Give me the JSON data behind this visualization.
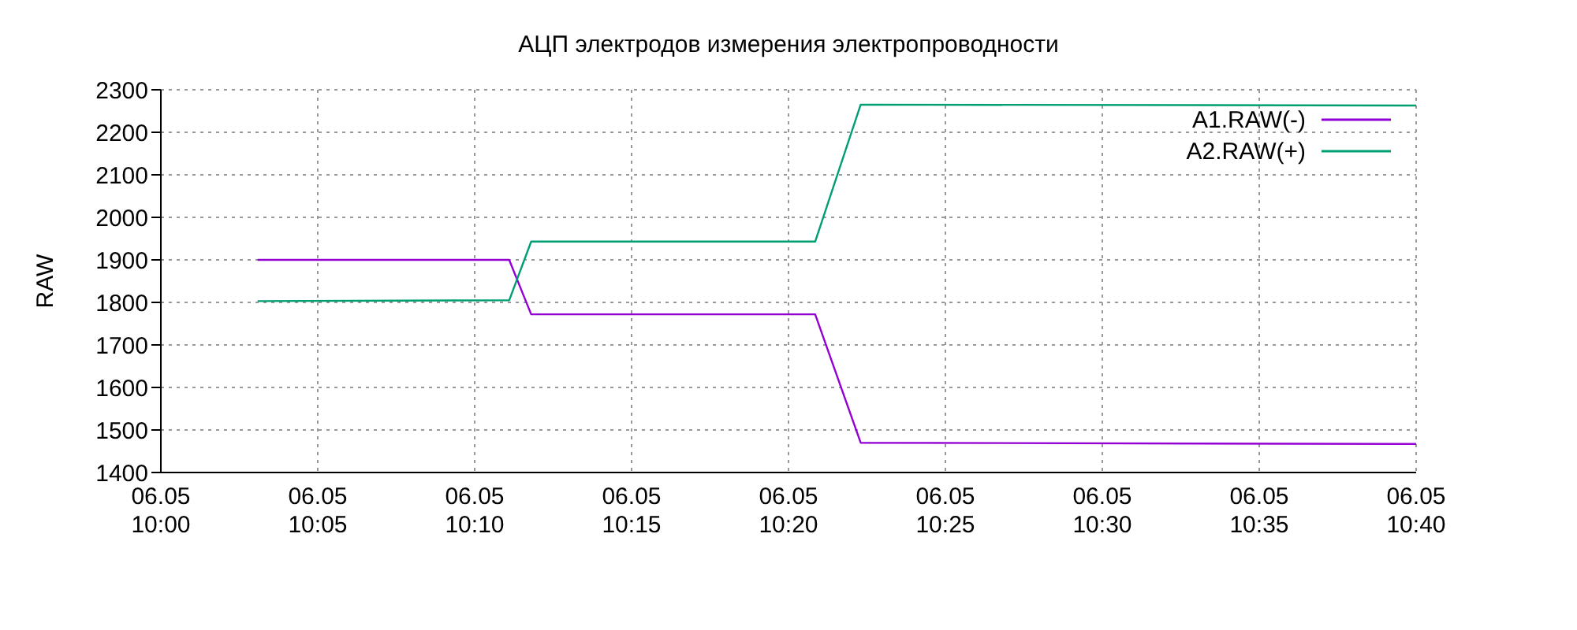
{
  "chart_data": {
    "type": "line",
    "title": "АЦП электродов измерения электропроводности",
    "ylabel": "RAW",
    "xlim": [
      "--05-06T10:00",
      "--05-06T10:40"
    ],
    "xticks": [
      {
        "value": "--05-06T10:00",
        "label": "06.05\n10:00"
      },
      {
        "value": "--05-06T10:05",
        "label": "06.05\n10:05"
      },
      {
        "value": "--05-06T10:10",
        "label": "06.05\n10:10"
      },
      {
        "value": "--05-06T10:15",
        "label": "06.05\n10:15"
      },
      {
        "value": "--05-06T10:20",
        "label": "06.05\n10:20"
      },
      {
        "value": "--05-06T10:25",
        "label": "06.05\n10:25"
      },
      {
        "value": "--05-06T10:30",
        "label": "06.05\n10:30"
      },
      {
        "value": "--05-06T10:35",
        "label": "06.05\n10:35"
      },
      {
        "value": "--05-06T10:40",
        "label": "06.05\n10:40"
      }
    ],
    "ylim": [
      1400,
      2300
    ],
    "yticks": [
      1400,
      1500,
      1600,
      1700,
      1800,
      1900,
      2000,
      2100,
      2200,
      2300
    ],
    "grid": true,
    "legend": "top right",
    "marker": "none",
    "line_style": "solid",
    "series": [
      {
        "name": "A1.RAW(-)",
        "color": "#9400d3",
        "x": [
          "--05-06T10:03:05",
          "--05-06T10:11:06",
          "--05-06T10:11:48",
          "--05-06T10:20:51",
          "--05-06T10:22:18",
          "--05-06T10:40"
        ],
        "values": [
          1900,
          1900,
          1772,
          1772,
          1470,
          1467
        ]
      },
      {
        "name": "A2.RAW(+)",
        "color": "#009e73",
        "x": [
          "--05-06T10:03:05",
          "--05-06T10:11:06",
          "--05-06T10:11:48",
          "--05-06T10:20:51",
          "--05-06T10:22:18",
          "--05-06T10:40"
        ],
        "values": [
          1803,
          1805,
          1943,
          1943,
          2265,
          2263
        ]
      }
    ]
  }
}
